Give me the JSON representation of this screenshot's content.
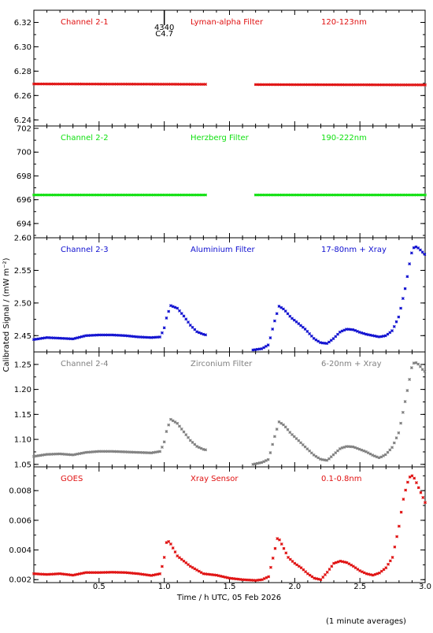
{
  "figure": {
    "xlabel": "Time / h UTC, 05 Feb 2026",
    "ylabel": "Calibrated Signal / (mW m⁻²)",
    "footnote": "(1 minute averages)",
    "xlim": [
      0.0,
      3.0
    ],
    "xticks": [
      "0.5",
      "1.0",
      "1.5",
      "2.0",
      "2.5",
      "3.0"
    ],
    "xtick_values": [
      0.5,
      1.0,
      1.5,
      2.0,
      2.5,
      3.0
    ],
    "event_marker": {
      "x": 1.0,
      "labels": [
        "4340",
        "C4.7"
      ],
      "color": "#000000"
    }
  },
  "chart_data": [
    {
      "type": "scatter",
      "panel": "channel-2-1",
      "channel": "Channel 2-1",
      "filter": "Lyman-alpha Filter",
      "band": "120-123nm",
      "color": "#e01010",
      "ylim": [
        6.235,
        6.33
      ],
      "yticks": [
        "6.24",
        "6.26",
        "6.28",
        "6.30",
        "6.32"
      ],
      "ytick_values": [
        6.24,
        6.26,
        6.28,
        6.3,
        6.32
      ],
      "segments": [
        {
          "x_start": 0.0,
          "x_end": 1.32
        },
        {
          "x_start": 1.7,
          "x_end": 3.0
        }
      ],
      "x": [
        0.0,
        0.5,
        1.0,
        1.32,
        1.7,
        2.0,
        2.5,
        3.0
      ],
      "y": [
        6.2695,
        6.2694,
        6.2693,
        6.2692,
        6.269,
        6.2689,
        6.2688,
        6.2687
      ]
    },
    {
      "type": "scatter",
      "panel": "channel-2-2",
      "channel": "Channel 2-2",
      "filter": "Herzberg Filter",
      "band": "190-222nm",
      "color": "#10e010",
      "ylim": [
        692.8,
        702.2
      ],
      "yticks": [
        "694",
        "696",
        "698",
        "700",
        "702"
      ],
      "ytick_values": [
        694,
        696,
        698,
        700,
        702
      ],
      "segments": [
        {
          "x_start": 0.0,
          "x_end": 1.32
        },
        {
          "x_start": 1.7,
          "x_end": 3.0
        }
      ],
      "x": [
        0.0,
        0.5,
        1.0,
        1.32,
        1.7,
        2.0,
        2.5,
        3.0
      ],
      "y": [
        696.4,
        696.4,
        696.4,
        696.4,
        696.4,
        696.4,
        696.4,
        696.4
      ]
    },
    {
      "type": "scatter",
      "panel": "channel-2-3",
      "channel": "Channel 2-3",
      "filter": "Aluminium Filter",
      "band": "17-80nm + Xray",
      "color": "#1010d0",
      "ylim": [
        2.425,
        2.6
      ],
      "yticks": [
        "2.45",
        "2.50",
        "2.55",
        "2.60"
      ],
      "ytick_values": [
        2.45,
        2.5,
        2.55,
        2.6
      ],
      "segments": [
        {
          "x_start": 0.0,
          "x_end": 1.32
        },
        {
          "x_start": 1.68,
          "x_end": 3.0
        }
      ],
      "x": [
        0.0,
        0.1,
        0.2,
        0.3,
        0.4,
        0.5,
        0.6,
        0.7,
        0.8,
        0.9,
        0.97,
        1.0,
        1.02,
        1.05,
        1.1,
        1.15,
        1.2,
        1.25,
        1.3,
        1.32,
        1.68,
        1.75,
        1.8,
        1.84,
        1.88,
        1.92,
        1.97,
        2.02,
        2.08,
        2.15,
        2.2,
        2.25,
        2.3,
        2.35,
        2.4,
        2.45,
        2.5,
        2.55,
        2.6,
        2.65,
        2.7,
        2.75,
        2.8,
        2.85,
        2.88,
        2.9,
        2.92,
        2.95,
        2.98,
        3.0
      ],
      "y": [
        2.444,
        2.447,
        2.446,
        2.445,
        2.45,
        2.451,
        2.451,
        2.45,
        2.448,
        2.447,
        2.448,
        2.462,
        2.48,
        2.496,
        2.492,
        2.48,
        2.466,
        2.456,
        2.452,
        2.451,
        2.428,
        2.43,
        2.436,
        2.468,
        2.495,
        2.49,
        2.478,
        2.47,
        2.46,
        2.445,
        2.439,
        2.438,
        2.446,
        2.456,
        2.46,
        2.459,
        2.455,
        2.452,
        2.45,
        2.448,
        2.45,
        2.458,
        2.48,
        2.525,
        2.56,
        2.58,
        2.587,
        2.584,
        2.578,
        2.574
      ]
    },
    {
      "type": "scatter",
      "panel": "channel-2-4",
      "channel": "Channel 2-4",
      "filter": "Zirconium Filter",
      "band": "6-20nm + Xray",
      "color": "#808080",
      "ylim": [
        1.045,
        1.275
      ],
      "yticks": [
        "1.05",
        "1.10",
        "1.15",
        "1.20",
        "1.25"
      ],
      "ytick_values": [
        1.05,
        1.1,
        1.15,
        1.2,
        1.25
      ],
      "segments": [
        {
          "x_start": 0.0,
          "x_end": 1.32
        },
        {
          "x_start": 1.68,
          "x_end": 3.0
        }
      ],
      "x": [
        0.0,
        0.1,
        0.2,
        0.3,
        0.4,
        0.5,
        0.6,
        0.7,
        0.8,
        0.9,
        0.97,
        1.0,
        1.02,
        1.05,
        1.1,
        1.15,
        1.2,
        1.25,
        1.3,
        1.32,
        1.68,
        1.75,
        1.8,
        1.84,
        1.88,
        1.92,
        1.97,
        2.02,
        2.08,
        2.15,
        2.2,
        2.25,
        2.3,
        2.35,
        2.4,
        2.45,
        2.5,
        2.55,
        2.6,
        2.65,
        2.7,
        2.75,
        2.8,
        2.85,
        2.88,
        2.9,
        2.92,
        2.95,
        2.98,
        3.0
      ],
      "y": [
        1.066,
        1.07,
        1.071,
        1.069,
        1.074,
        1.076,
        1.076,
        1.075,
        1.074,
        1.073,
        1.076,
        1.095,
        1.12,
        1.14,
        1.132,
        1.115,
        1.098,
        1.086,
        1.08,
        1.079,
        1.05,
        1.054,
        1.06,
        1.1,
        1.135,
        1.128,
        1.112,
        1.1,
        1.085,
        1.068,
        1.06,
        1.058,
        1.07,
        1.082,
        1.086,
        1.085,
        1.08,
        1.075,
        1.068,
        1.063,
        1.07,
        1.085,
        1.115,
        1.18,
        1.22,
        1.248,
        1.255,
        1.25,
        1.24,
        1.235
      ]
    },
    {
      "type": "scatter",
      "panel": "goes",
      "channel": "GOES",
      "filter": "Xray Sensor",
      "band": "0.1-0.8nm",
      "color": "#e01010",
      "ylim": [
        0.0018,
        0.0096
      ],
      "yticks": [
        "0.002",
        "0.004",
        "0.006",
        "0.008"
      ],
      "ytick_values": [
        0.002,
        0.004,
        0.006,
        0.008
      ],
      "segments": [
        {
          "x_start": 0.0,
          "x_end": 3.0
        }
      ],
      "x": [
        0.0,
        0.1,
        0.2,
        0.3,
        0.4,
        0.5,
        0.6,
        0.7,
        0.8,
        0.9,
        0.97,
        1.0,
        1.02,
        1.05,
        1.1,
        1.2,
        1.3,
        1.4,
        1.5,
        1.6,
        1.7,
        1.75,
        1.8,
        1.84,
        1.87,
        1.9,
        1.95,
        2.0,
        2.05,
        2.1,
        2.15,
        2.2,
        2.25,
        2.3,
        2.35,
        2.4,
        2.45,
        2.5,
        2.55,
        2.6,
        2.65,
        2.7,
        2.75,
        2.8,
        2.83,
        2.86,
        2.88,
        2.9,
        2.92,
        2.95,
        2.98,
        3.0
      ],
      "y": [
        0.0024,
        0.00235,
        0.0024,
        0.0023,
        0.00248,
        0.00248,
        0.0025,
        0.00248,
        0.0024,
        0.00228,
        0.0024,
        0.0035,
        0.0047,
        0.0044,
        0.0036,
        0.0029,
        0.0024,
        0.0023,
        0.0021,
        0.002,
        0.00195,
        0.002,
        0.0022,
        0.0037,
        0.0049,
        0.0044,
        0.0035,
        0.0031,
        0.0028,
        0.0024,
        0.0021,
        0.002,
        0.0025,
        0.0031,
        0.00325,
        0.00315,
        0.0029,
        0.0026,
        0.0024,
        0.0023,
        0.00245,
        0.0028,
        0.0035,
        0.0056,
        0.0073,
        0.0084,
        0.0089,
        0.009,
        0.0088,
        0.0082,
        0.0076,
        0.0072
      ]
    }
  ]
}
